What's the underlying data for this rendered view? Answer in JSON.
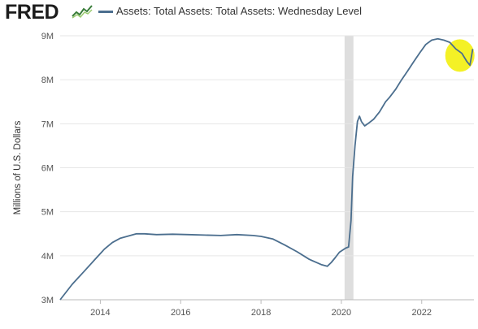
{
  "header": {
    "logo_text": "FRED",
    "logo_icon": "sparkline-chart-icon",
    "legend_label": "Assets: Total Assets: Total Assets: Wednesday Level"
  },
  "chart_data": {
    "type": "line",
    "title": "",
    "xlabel": "",
    "ylabel": "Millions of U.S. Dollars",
    "xlim": [
      2013.0,
      2023.3
    ],
    "ylim": [
      3000000,
      9000000
    ],
    "grid": "horizontal",
    "legend": "top-left",
    "x_ticks": [
      {
        "value": 2014,
        "label": "2014"
      },
      {
        "value": 2016,
        "label": "2016"
      },
      {
        "value": 2018,
        "label": "2018"
      },
      {
        "value": 2020,
        "label": "2020"
      },
      {
        "value": 2022,
        "label": "2022"
      }
    ],
    "y_ticks": [
      {
        "value": 3000000,
        "label": "3M"
      },
      {
        "value": 4000000,
        "label": "4M"
      },
      {
        "value": 5000000,
        "label": "5M"
      },
      {
        "value": 6000000,
        "label": "6M"
      },
      {
        "value": 7000000,
        "label": "7M"
      },
      {
        "value": 8000000,
        "label": "8M"
      },
      {
        "value": 9000000,
        "label": "9M"
      }
    ],
    "recession_shading": [
      {
        "start": 2020.08,
        "end": 2020.3
      }
    ],
    "colors": {
      "line": "#4b6e8e",
      "recession": "#dedede",
      "grid": "#e6e6e6",
      "highlight": "#f2ee00"
    },
    "highlight_region": {
      "x": 2022.95,
      "y": 8550000
    },
    "series": [
      {
        "x": [
          2013.0,
          2013.3,
          2013.6,
          2013.9,
          2014.1,
          2014.3,
          2014.5,
          2014.7,
          2014.9,
          2015.1,
          2015.4,
          2015.8,
          2016.2,
          2016.6,
          2017.0,
          2017.4,
          2017.8,
          2018.0,
          2018.3,
          2018.6,
          2018.9,
          2019.2,
          2019.5,
          2019.65,
          2019.75,
          2019.85,
          2019.95,
          2020.1,
          2020.18,
          2020.24,
          2020.28,
          2020.34,
          2020.4,
          2020.45,
          2020.5,
          2020.58,
          2020.66,
          2020.8,
          2020.95,
          2021.1,
          2021.2,
          2021.35,
          2021.5,
          2021.65,
          2021.8,
          2021.95,
          2022.1,
          2022.25,
          2022.4,
          2022.55,
          2022.7,
          2022.85,
          2023.0,
          2023.12,
          2023.2,
          2023.27
        ],
        "y": [
          3000000,
          3350000,
          3650000,
          3950000,
          4150000,
          4300000,
          4400000,
          4450000,
          4500000,
          4500000,
          4480000,
          4490000,
          4480000,
          4470000,
          4460000,
          4480000,
          4460000,
          4440000,
          4380000,
          4240000,
          4090000,
          3920000,
          3800000,
          3760000,
          3850000,
          3960000,
          4080000,
          4170000,
          4200000,
          4800000,
          5800000,
          6500000,
          7050000,
          7170000,
          7050000,
          6950000,
          7000000,
          7100000,
          7270000,
          7500000,
          7600000,
          7780000,
          8000000,
          8200000,
          8410000,
          8610000,
          8800000,
          8900000,
          8930000,
          8900000,
          8850000,
          8700000,
          8600000,
          8420000,
          8330000,
          8700000
        ]
      }
    ]
  }
}
